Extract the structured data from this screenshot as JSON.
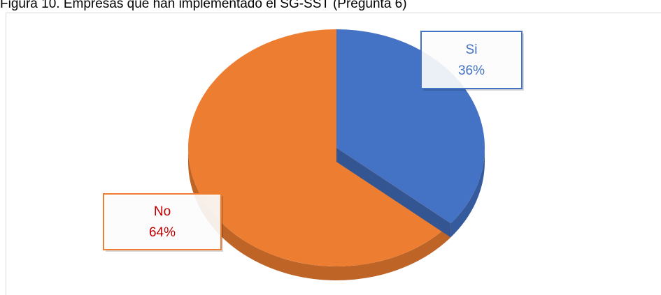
{
  "chart_data": {
    "type": "pie3d",
    "title": "Figura 10. Empresas que han implementado el SG-SST (Pregunta 6)",
    "categories": [
      "Si",
      "No"
    ],
    "values": [
      36,
      64
    ],
    "value_labels": [
      "36%",
      "64%"
    ],
    "colors": [
      "#4472c4",
      "#ed7d31"
    ],
    "label_colors": [
      "#4472c4",
      "#c00000"
    ]
  }
}
